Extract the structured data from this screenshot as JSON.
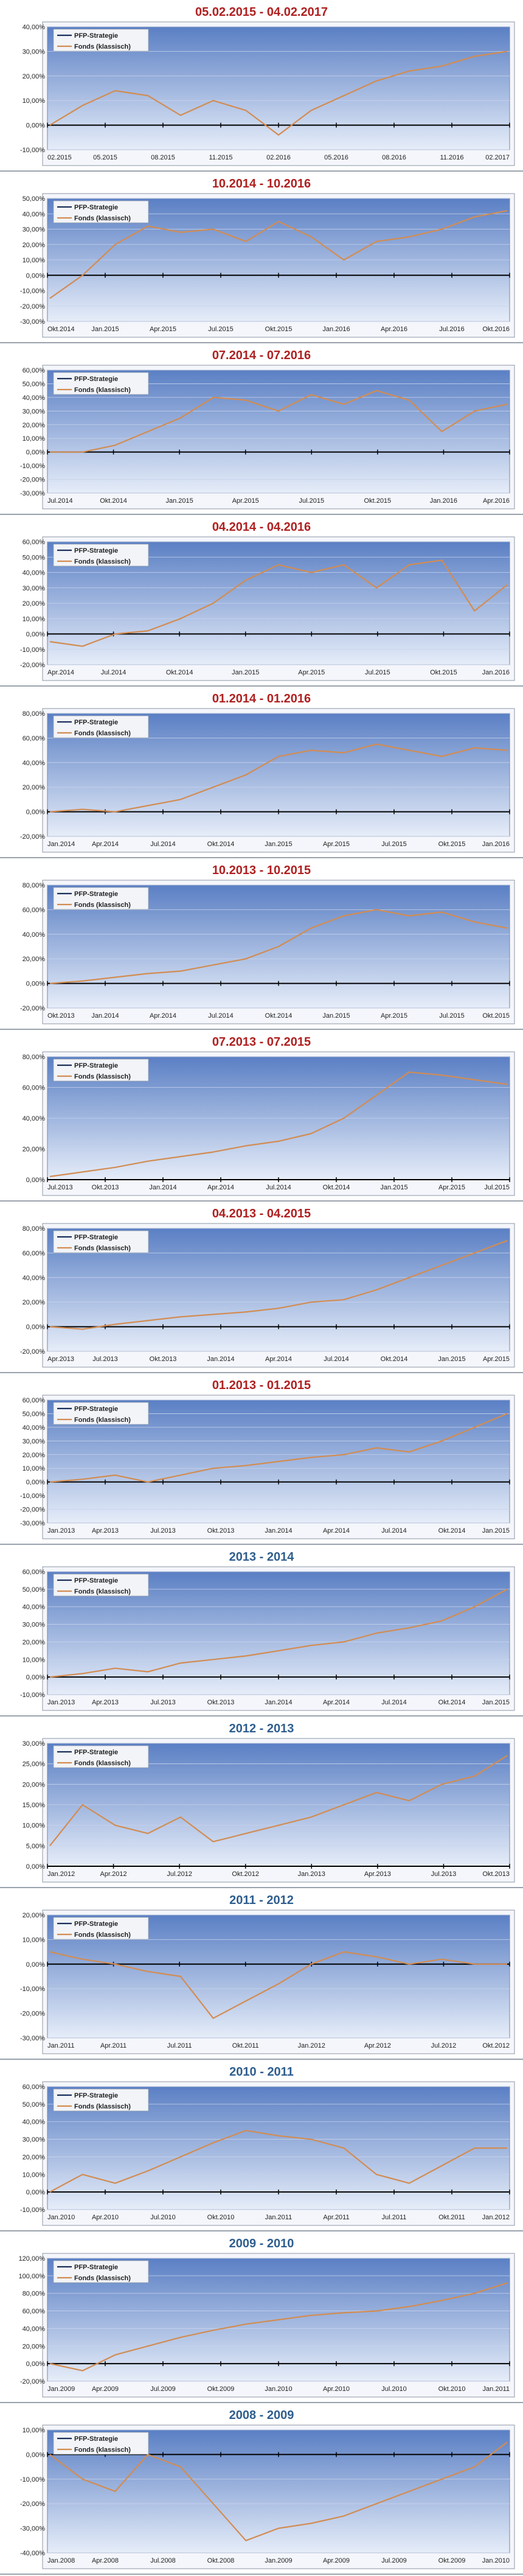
{
  "legend": {
    "strategy": "PFP-Strategie",
    "fund": "Fonds (klassisch)"
  },
  "colors": {
    "plot_top": "#5a7fc4",
    "plot_bottom": "#e6edf9",
    "fund_line": "#d28c52",
    "strategy_line": "#1a2f5a",
    "title_red": "#b02020",
    "title_blue": "#2f5e8e"
  },
  "chart_data": [
    {
      "type": "line",
      "title": "05.02.2015 - 04.02.2017",
      "title_color": "red",
      "ylim": [
        -10,
        40
      ],
      "yticks": [
        -10,
        0,
        10,
        20,
        30,
        40
      ],
      "tick_labels": [
        "02.2015",
        "05.2015",
        "08.2015",
        "11.2015",
        "02.2016",
        "05.2016",
        "08.2016",
        "11.2016",
        "02.2017"
      ],
      "series": [
        {
          "name": "Fonds (klassisch)",
          "values": [
            0,
            8,
            14,
            12,
            4,
            10,
            6,
            -4,
            6,
            12,
            18,
            22,
            24,
            28,
            30
          ]
        },
        {
          "name": "PFP-Strategie",
          "values": []
        }
      ]
    },
    {
      "type": "line",
      "title": "10.2014 - 10.2016",
      "title_color": "red",
      "ylim": [
        -30,
        50
      ],
      "yticks": [
        -30,
        -20,
        -10,
        0,
        10,
        20,
        30,
        40,
        50
      ],
      "tick_labels": [
        "Okt.2014",
        "Jan.2015",
        "Apr.2015",
        "Jul.2015",
        "Okt.2015",
        "Jan.2016",
        "Apr.2016",
        "Jul.2016",
        "Okt.2016"
      ],
      "series": [
        {
          "name": "Fonds (klassisch)",
          "values": [
            -15,
            0,
            20,
            32,
            28,
            30,
            22,
            35,
            25,
            10,
            22,
            25,
            30,
            38,
            42
          ]
        },
        {
          "name": "PFP-Strategie",
          "values": []
        }
      ]
    },
    {
      "type": "line",
      "title": "07.2014 - 07.2016",
      "title_color": "red",
      "ylim": [
        -30,
        60
      ],
      "yticks": [
        -30,
        -20,
        -10,
        0,
        10,
        20,
        30,
        40,
        50,
        60
      ],
      "tick_labels": [
        "Jul.2014",
        "Okt.2014",
        "Jan.2015",
        "Apr.2015",
        "Jul.2015",
        "Okt.2015",
        "Jan.2016",
        "Apr.2016"
      ],
      "series": [
        {
          "name": "Fonds (klassisch)",
          "values": [
            0,
            0,
            5,
            15,
            25,
            40,
            38,
            30,
            42,
            35,
            45,
            38,
            15,
            30,
            35
          ]
        },
        {
          "name": "PFP-Strategie",
          "values": []
        }
      ]
    },
    {
      "type": "line",
      "title": "04.2014 - 04.2016",
      "title_color": "red",
      "ylim": [
        -20,
        60
      ],
      "yticks": [
        -20,
        -10,
        0,
        10,
        20,
        30,
        40,
        50,
        60
      ],
      "tick_labels": [
        "Apr.2014",
        "Jul.2014",
        "Okt.2014",
        "Jan.2015",
        "Apr.2015",
        "Jul.2015",
        "Okt.2015",
        "Jan.2016"
      ],
      "series": [
        {
          "name": "Fonds (klassisch)",
          "values": [
            -5,
            -8,
            0,
            2,
            10,
            20,
            35,
            45,
            40,
            45,
            30,
            45,
            48,
            15,
            32
          ]
        },
        {
          "name": "PFP-Strategie",
          "values": []
        }
      ]
    },
    {
      "type": "line",
      "title": "01.2014 - 01.2016",
      "title_color": "red",
      "ylim": [
        -20,
        80
      ],
      "yticks": [
        -20,
        0,
        20,
        40,
        60,
        80
      ],
      "tick_labels": [
        "Jan.2014",
        "Apr.2014",
        "Jul.2014",
        "Okt.2014",
        "Jan.2015",
        "Apr.2015",
        "Jul.2015",
        "Okt.2015",
        "Jan.2016"
      ],
      "series": [
        {
          "name": "Fonds (klassisch)",
          "values": [
            0,
            2,
            0,
            5,
            10,
            20,
            30,
            45,
            50,
            48,
            55,
            50,
            45,
            52,
            50
          ]
        },
        {
          "name": "PFP-Strategie",
          "values": []
        }
      ]
    },
    {
      "type": "line",
      "title": "10.2013 - 10.2015",
      "title_color": "red",
      "ylim": [
        -20,
        80
      ],
      "yticks": [
        -20,
        0,
        20,
        40,
        60,
        80
      ],
      "tick_labels": [
        "Okt.2013",
        "Jan.2014",
        "Apr.2014",
        "Jul.2014",
        "Okt.2014",
        "Jan.2015",
        "Apr.2015",
        "Jul.2015",
        "Okt.2015"
      ],
      "series": [
        {
          "name": "Fonds (klassisch)",
          "values": [
            0,
            2,
            5,
            8,
            10,
            15,
            20,
            30,
            45,
            55,
            60,
            55,
            58,
            50,
            45
          ]
        },
        {
          "name": "PFP-Strategie",
          "values": []
        }
      ]
    },
    {
      "type": "line",
      "title": "07.2013 - 07.2015",
      "title_color": "red",
      "ylim": [
        0,
        80
      ],
      "yticks": [
        0,
        20,
        40,
        60,
        80
      ],
      "tick_labels": [
        "Jul.2013",
        "Okt.2013",
        "Jan.2014",
        "Apr.2014",
        "Jul.2014",
        "Okt.2014",
        "Jan.2015",
        "Apr.2015",
        "Jul.2015"
      ],
      "series": [
        {
          "name": "Fonds (klassisch)",
          "values": [
            2,
            5,
            8,
            12,
            15,
            18,
            22,
            25,
            30,
            40,
            55,
            70,
            68,
            65,
            62
          ]
        },
        {
          "name": "PFP-Strategie",
          "values": []
        }
      ]
    },
    {
      "type": "line",
      "title": "04.2013 - 04.2015",
      "title_color": "red",
      "ylim": [
        -20,
        80
      ],
      "yticks": [
        -20,
        0,
        20,
        40,
        60,
        80
      ],
      "tick_labels": [
        "Apr.2013",
        "Jul.2013",
        "Okt.2013",
        "Jan.2014",
        "Apr.2014",
        "Jul.2014",
        "Okt.2014",
        "Jan.2015",
        "Apr.2015"
      ],
      "series": [
        {
          "name": "Fonds (klassisch)",
          "values": [
            0,
            -2,
            2,
            5,
            8,
            10,
            12,
            15,
            20,
            22,
            30,
            40,
            50,
            60,
            70
          ]
        },
        {
          "name": "PFP-Strategie",
          "values": []
        }
      ]
    },
    {
      "type": "line",
      "title": "01.2013 - 01.2015",
      "title_color": "red",
      "ylim": [
        -30,
        60
      ],
      "yticks": [
        -30,
        -20,
        -10,
        0,
        10,
        20,
        30,
        40,
        50,
        60
      ],
      "tick_labels": [
        "Jan.2013",
        "Apr.2013",
        "Jul.2013",
        "Okt.2013",
        "Jan.2014",
        "Apr.2014",
        "Jul.2014",
        "Okt.2014",
        "Jan.2015"
      ],
      "series": [
        {
          "name": "Fonds (klassisch)",
          "values": [
            0,
            2,
            5,
            0,
            5,
            10,
            12,
            15,
            18,
            20,
            25,
            22,
            30,
            40,
            50
          ]
        },
        {
          "name": "PFP-Strategie",
          "values": []
        }
      ]
    },
    {
      "type": "line",
      "title": "2013 - 2014",
      "title_color": "blue",
      "ylim": [
        -10,
        60
      ],
      "yticks": [
        -10,
        0,
        10,
        20,
        30,
        40,
        50,
        60
      ],
      "tick_labels": [
        "Jan.2013",
        "Apr.2013",
        "Jul.2013",
        "Okt.2013",
        "Jan.2014",
        "Apr.2014",
        "Jul.2014",
        "Okt.2014",
        "Jan.2015"
      ],
      "series": [
        {
          "name": "Fonds (klassisch)",
          "values": [
            0,
            2,
            5,
            3,
            8,
            10,
            12,
            15,
            18,
            20,
            25,
            28,
            32,
            40,
            50
          ]
        },
        {
          "name": "PFP-Strategie",
          "values": []
        }
      ]
    },
    {
      "type": "line",
      "title": "2012 - 2013",
      "title_color": "blue",
      "ylim": [
        0,
        30
      ],
      "yticks": [
        0,
        5,
        10,
        15,
        20,
        25,
        30
      ],
      "tick_labels": [
        "Jan.2012",
        "Apr.2012",
        "Jul.2012",
        "Okt.2012",
        "Jan.2013",
        "Apr.2013",
        "Jul.2013",
        "Okt.2013"
      ],
      "series": [
        {
          "name": "Fonds (klassisch)",
          "values": [
            5,
            15,
            10,
            8,
            12,
            6,
            8,
            10,
            12,
            15,
            18,
            16,
            20,
            22,
            27
          ]
        },
        {
          "name": "PFP-Strategie",
          "values": []
        }
      ]
    },
    {
      "type": "line",
      "title": "2011 - 2012",
      "title_color": "blue",
      "ylim": [
        -30,
        20
      ],
      "yticks": [
        -30,
        -20,
        -10,
        0,
        10,
        20
      ],
      "tick_labels": [
        "Jan.2011",
        "Apr.2011",
        "Jul.2011",
        "Okt.2011",
        "Jan.2012",
        "Apr.2012",
        "Jul.2012",
        "Okt.2012"
      ],
      "series": [
        {
          "name": "Fonds (klassisch)",
          "values": [
            5,
            2,
            0,
            -3,
            -5,
            -22,
            -15,
            -8,
            0,
            5,
            3,
            0,
            2,
            0,
            0
          ]
        },
        {
          "name": "PFP-Strategie",
          "values": []
        }
      ]
    },
    {
      "type": "line",
      "title": "2010 - 2011",
      "title_color": "blue",
      "ylim": [
        -10,
        60
      ],
      "yticks": [
        -10,
        0,
        10,
        20,
        30,
        40,
        50,
        60
      ],
      "tick_labels": [
        "Jan.2010",
        "Apr.2010",
        "Jul.2010",
        "Okt.2010",
        "Jan.2011",
        "Apr.2011",
        "Jul.2011",
        "Okt.2011",
        "Jan.2012"
      ],
      "series": [
        {
          "name": "Fonds (klassisch)",
          "values": [
            0,
            10,
            5,
            12,
            20,
            28,
            35,
            32,
            30,
            25,
            10,
            5,
            15,
            25,
            25
          ]
        },
        {
          "name": "PFP-Strategie",
          "values": []
        }
      ]
    },
    {
      "type": "line",
      "title": "2009 - 2010",
      "title_color": "blue",
      "ylim": [
        -20,
        120
      ],
      "yticks": [
        -20,
        0,
        20,
        40,
        60,
        80,
        100,
        120
      ],
      "tick_labels": [
        "Jan.2009",
        "Apr.2009",
        "Jul.2009",
        "Okt.2009",
        "Jan.2010",
        "Apr.2010",
        "Jul.2010",
        "Okt.2010",
        "Jan.2011"
      ],
      "series": [
        {
          "name": "Fonds (klassisch)",
          "values": [
            0,
            -8,
            10,
            20,
            30,
            38,
            45,
            50,
            55,
            58,
            60,
            65,
            72,
            80,
            92
          ]
        },
        {
          "name": "PFP-Strategie",
          "values": []
        }
      ]
    },
    {
      "type": "line",
      "title": "2008 - 2009",
      "title_color": "blue",
      "ylim": [
        -40,
        10
      ],
      "yticks": [
        -40,
        -30,
        -20,
        -10,
        0,
        10
      ],
      "tick_labels": [
        "Jan.2008",
        "Apr.2008",
        "Jul.2008",
        "Okt.2008",
        "Jan.2009",
        "Apr.2009",
        "Jul.2009",
        "Okt.2009",
        "Jan.2010"
      ],
      "series": [
        {
          "name": "Fonds (klassisch)",
          "values": [
            0,
            -10,
            -15,
            0,
            -5,
            -20,
            -35,
            -30,
            -28,
            -25,
            -20,
            -15,
            -10,
            -5,
            5
          ]
        },
        {
          "name": "PFP-Strategie",
          "values": []
        }
      ]
    }
  ]
}
